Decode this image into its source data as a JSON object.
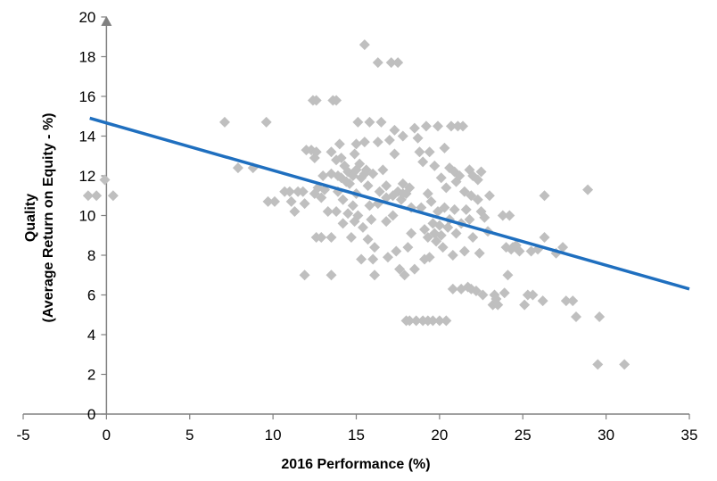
{
  "chart_data": {
    "type": "scatter",
    "title": "",
    "xlabel": "2016 Performance (%)",
    "ylabel_lines": [
      "Quality",
      "(Average Return on Equity - %)"
    ],
    "xlim": [
      -5,
      35
    ],
    "ylim": [
      0,
      20
    ],
    "x_ticks": [
      -5,
      0,
      5,
      10,
      15,
      20,
      25,
      30,
      35
    ],
    "y_ticks": [
      0,
      2,
      4,
      6,
      8,
      10,
      12,
      14,
      16,
      18,
      20
    ],
    "grid": false,
    "legend": "none",
    "y_axis_at_x": 0,
    "colors": {
      "points": "#BFBFBF",
      "trendline": "#1F6FBF",
      "axis": "#808080"
    },
    "series": [
      {
        "marker": "diamond",
        "points": [
          [
            -1.1,
            11.0
          ],
          [
            -0.6,
            11.0
          ],
          [
            -0.1,
            11.8
          ],
          [
            0.4,
            11.0
          ],
          [
            7.1,
            14.7
          ],
          [
            7.9,
            12.4
          ],
          [
            8.8,
            12.4
          ],
          [
            9.6,
            14.7
          ],
          [
            9.7,
            10.7
          ],
          [
            10.1,
            10.7
          ],
          [
            10.7,
            11.2
          ],
          [
            11.0,
            11.2
          ],
          [
            11.1,
            10.7
          ],
          [
            11.3,
            10.2
          ],
          [
            11.5,
            11.2
          ],
          [
            11.8,
            11.2
          ],
          [
            11.9,
            10.6
          ],
          [
            11.9,
            7.0
          ],
          [
            12.0,
            13.3
          ],
          [
            12.3,
            13.3
          ],
          [
            12.5,
            12.9
          ],
          [
            12.6,
            13.2
          ],
          [
            12.4,
            15.8
          ],
          [
            12.6,
            15.8
          ],
          [
            12.6,
            8.9
          ],
          [
            12.9,
            8.9
          ],
          [
            12.5,
            11.1
          ],
          [
            12.7,
            11.4
          ],
          [
            12.9,
            10.9
          ],
          [
            13.0,
            12.0
          ],
          [
            13.1,
            11.3
          ],
          [
            13.3,
            10.2
          ],
          [
            13.5,
            7.0
          ],
          [
            13.5,
            8.9
          ],
          [
            13.5,
            13.2
          ],
          [
            13.5,
            12.1
          ],
          [
            13.6,
            15.8
          ],
          [
            13.8,
            15.8
          ],
          [
            13.8,
            12.8
          ],
          [
            13.8,
            10.2
          ],
          [
            13.9,
            12.0
          ],
          [
            13.9,
            11.2
          ],
          [
            14.0,
            13.6
          ],
          [
            14.1,
            12.9
          ],
          [
            14.1,
            11.9
          ],
          [
            14.2,
            10.8
          ],
          [
            14.2,
            9.6
          ],
          [
            14.3,
            12.5
          ],
          [
            14.4,
            11.7
          ],
          [
            14.5,
            12.2
          ],
          [
            14.5,
            10.1
          ],
          [
            14.6,
            11.6
          ],
          [
            14.7,
            8.9
          ],
          [
            14.8,
            12.0
          ],
          [
            14.8,
            10.5
          ],
          [
            14.9,
            13.1
          ],
          [
            14.9,
            9.7
          ],
          [
            15.0,
            12.3
          ],
          [
            15.0,
            11.1
          ],
          [
            15.1,
            10.0
          ],
          [
            15.0,
            13.6
          ],
          [
            15.1,
            14.7
          ],
          [
            15.2,
            12.6
          ],
          [
            15.3,
            11.9
          ],
          [
            15.3,
            7.8
          ],
          [
            15.4,
            9.4
          ],
          [
            15.5,
            12.1
          ],
          [
            15.5,
            13.7
          ],
          [
            15.5,
            18.6
          ],
          [
            15.6,
            12.3
          ],
          [
            15.7,
            11.5
          ],
          [
            15.7,
            8.8
          ],
          [
            15.8,
            14.7
          ],
          [
            15.8,
            10.5
          ],
          [
            15.9,
            9.8
          ],
          [
            16.0,
            12.1
          ],
          [
            16.0,
            7.8
          ],
          [
            16.1,
            8.4
          ],
          [
            16.1,
            7.0
          ],
          [
            16.3,
            17.7
          ],
          [
            16.3,
            13.7
          ],
          [
            16.3,
            10.6
          ],
          [
            16.4,
            11.2
          ],
          [
            16.5,
            14.7
          ],
          [
            16.6,
            12.3
          ],
          [
            16.8,
            11.5
          ],
          [
            16.8,
            10.9
          ],
          [
            16.8,
            9.7
          ],
          [
            16.9,
            7.9
          ],
          [
            17.0,
            13.8
          ],
          [
            17.1,
            17.7
          ],
          [
            17.2,
            11.0
          ],
          [
            17.2,
            10.0
          ],
          [
            17.3,
            14.3
          ],
          [
            17.3,
            13.1
          ],
          [
            17.4,
            8.2
          ],
          [
            17.5,
            17.7
          ],
          [
            17.5,
            11.2
          ],
          [
            17.6,
            7.3
          ],
          [
            17.7,
            10.8
          ],
          [
            17.8,
            11.1
          ],
          [
            17.8,
            14.0
          ],
          [
            17.8,
            11.6
          ],
          [
            17.9,
            7.0
          ],
          [
            18.0,
            4.7
          ],
          [
            18.0,
            11.1
          ],
          [
            18.1,
            8.4
          ],
          [
            18.2,
            11.4
          ],
          [
            18.2,
            4.7
          ],
          [
            18.3,
            9.1
          ],
          [
            18.3,
            10.4
          ],
          [
            18.5,
            14.4
          ],
          [
            18.5,
            7.3
          ],
          [
            18.6,
            4.7
          ],
          [
            18.7,
            13.9
          ],
          [
            18.8,
            13.2
          ],
          [
            18.9,
            10.4
          ],
          [
            19.0,
            12.7
          ],
          [
            19.0,
            4.7
          ],
          [
            19.1,
            9.3
          ],
          [
            19.1,
            7.8
          ],
          [
            19.2,
            14.5
          ],
          [
            19.3,
            11.1
          ],
          [
            19.3,
            8.9
          ],
          [
            19.3,
            4.7
          ],
          [
            19.4,
            13.2
          ],
          [
            19.4,
            7.9
          ],
          [
            19.5,
            10.7
          ],
          [
            19.6,
            9.6
          ],
          [
            19.6,
            4.7
          ],
          [
            19.7,
            12.5
          ],
          [
            19.7,
            9.1
          ],
          [
            19.8,
            8.7
          ],
          [
            19.9,
            14.5
          ],
          [
            19.9,
            10.2
          ],
          [
            20.0,
            9.5
          ],
          [
            20.0,
            4.7
          ],
          [
            20.1,
            11.9
          ],
          [
            20.1,
            9.0
          ],
          [
            20.2,
            8.4
          ],
          [
            20.3,
            10.4
          ],
          [
            20.3,
            13.4
          ],
          [
            20.4,
            4.7
          ],
          [
            20.4,
            11.4
          ],
          [
            20.5,
            9.4
          ],
          [
            20.6,
            12.4
          ],
          [
            20.6,
            9.8
          ],
          [
            20.7,
            14.5
          ],
          [
            20.8,
            8.0
          ],
          [
            20.8,
            6.3
          ],
          [
            20.9,
            12.2
          ],
          [
            20.9,
            10.3
          ],
          [
            21.0,
            11.7
          ],
          [
            21.0,
            9.1
          ],
          [
            21.1,
            14.5
          ],
          [
            21.2,
            12.0
          ],
          [
            21.3,
            9.6
          ],
          [
            21.3,
            6.3
          ],
          [
            21.4,
            14.5
          ],
          [
            21.5,
            11.2
          ],
          [
            21.5,
            8.2
          ],
          [
            21.6,
            10.3
          ],
          [
            21.7,
            6.4
          ],
          [
            21.8,
            12.3
          ],
          [
            21.8,
            9.8
          ],
          [
            21.9,
            11.0
          ],
          [
            21.9,
            6.3
          ],
          [
            22.0,
            8.9
          ],
          [
            22.0,
            12.0
          ],
          [
            22.2,
            6.2
          ],
          [
            22.3,
            11.8
          ],
          [
            22.3,
            10.8
          ],
          [
            22.4,
            8.1
          ],
          [
            22.5,
            12.2
          ],
          [
            22.5,
            10.2
          ],
          [
            22.6,
            6.0
          ],
          [
            22.7,
            9.9
          ],
          [
            22.9,
            9.2
          ],
          [
            23.0,
            11.0
          ],
          [
            23.2,
            5.5
          ],
          [
            23.3,
            6.0
          ],
          [
            23.4,
            5.8
          ],
          [
            23.5,
            5.5
          ],
          [
            23.8,
            10.0
          ],
          [
            23.9,
            6.1
          ],
          [
            24.0,
            8.4
          ],
          [
            24.1,
            7.0
          ],
          [
            24.2,
            10.0
          ],
          [
            24.3,
            8.3
          ],
          [
            24.4,
            8.4
          ],
          [
            24.6,
            8.5
          ],
          [
            24.8,
            8.2
          ],
          [
            25.1,
            5.5
          ],
          [
            25.3,
            6.0
          ],
          [
            25.5,
            8.2
          ],
          [
            25.6,
            6.0
          ],
          [
            25.9,
            8.3
          ],
          [
            26.2,
            5.7
          ],
          [
            26.3,
            8.9
          ],
          [
            26.3,
            11.0
          ],
          [
            27.0,
            8.1
          ],
          [
            27.4,
            8.4
          ],
          [
            27.6,
            5.7
          ],
          [
            28.0,
            5.7
          ],
          [
            28.2,
            4.9
          ],
          [
            28.9,
            11.3
          ],
          [
            29.5,
            2.5
          ],
          [
            29.6,
            4.9
          ],
          [
            31.1,
            2.5
          ]
        ]
      }
    ],
    "trendline": {
      "x_start": -1,
      "y_start": 14.9,
      "x_end": 35,
      "y_end": 6.3
    }
  }
}
